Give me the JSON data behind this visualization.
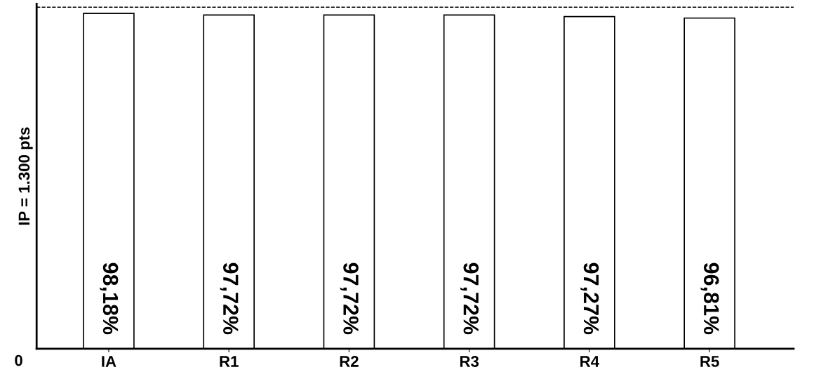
{
  "chart_data": {
    "type": "bar",
    "ylabel": "IP = 1.300 pts",
    "categories": [
      "IA",
      "R1",
      "R2",
      "R3",
      "R4",
      "R5"
    ],
    "values": [
      98.18,
      97.72,
      97.72,
      97.72,
      97.27,
      96.81
    ],
    "value_labels": [
      "98,18%",
      "97,72%",
      "97,72%",
      "97,72%",
      "97,27%",
      "96,81%"
    ],
    "color": "#ffffff",
    "annotations": [
      "0"
    ],
    "ref_lines": [
      {
        "axis": "y",
        "value": 100,
        "color": "#000000",
        "line_style": "dashed"
      }
    ],
    "grid": false,
    "legend": false
  }
}
